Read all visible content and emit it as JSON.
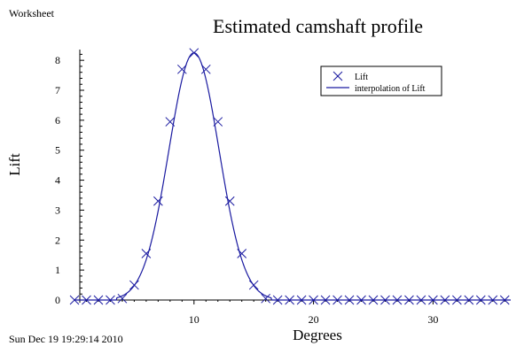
{
  "header": {
    "worksheet": "Worksheet"
  },
  "footer": {
    "timestamp": "Sun Dec 19 19:29:14 2010"
  },
  "chart_data": {
    "type": "scatter",
    "title": "Estimated camshaft profile",
    "xlabel": "Degrees",
    "ylabel": "Lift",
    "xlim": [
      0,
      36.5
    ],
    "ylim": [
      0,
      8.3
    ],
    "xticks": [
      10,
      20,
      30
    ],
    "yticks": [
      0,
      1,
      2,
      3,
      4,
      5,
      6,
      7,
      8
    ],
    "grid": false,
    "legend_position": "top-right",
    "series": [
      {
        "name": "Lift",
        "style": "markers",
        "marker": "x",
        "color": "#1a1aa0",
        "points": [
          [
            0,
            0
          ],
          [
            1,
            0
          ],
          [
            2,
            0
          ],
          [
            3,
            0
          ],
          [
            4,
            0.05
          ],
          [
            5,
            0.5
          ],
          [
            6,
            1.55
          ],
          [
            7,
            3.3
          ],
          [
            8,
            5.95
          ],
          [
            9,
            7.7
          ],
          [
            10,
            8.25
          ],
          [
            11,
            7.7
          ],
          [
            12,
            5.95
          ],
          [
            13,
            3.3
          ],
          [
            14,
            1.55
          ],
          [
            15,
            0.5
          ],
          [
            16,
            0.05
          ],
          [
            17,
            0
          ],
          [
            18,
            0
          ],
          [
            19,
            0
          ],
          [
            20,
            0
          ],
          [
            21,
            0
          ],
          [
            22,
            0
          ],
          [
            23,
            0
          ],
          [
            24,
            0
          ],
          [
            25,
            0
          ],
          [
            26,
            0
          ],
          [
            27,
            0
          ],
          [
            28,
            0
          ],
          [
            29,
            0
          ],
          [
            30,
            0
          ],
          [
            31,
            0
          ],
          [
            32,
            0
          ],
          [
            33,
            0
          ],
          [
            34,
            0
          ],
          [
            35,
            0
          ],
          [
            36,
            0
          ]
        ]
      },
      {
        "name": "interpolation of Lift",
        "style": "line",
        "color": "#1a1aa0",
        "curve_params": {
          "center": 10,
          "sigma": 2.1,
          "peak": 8.25,
          "support": [
            3.5,
            16.5
          ]
        }
      }
    ]
  }
}
